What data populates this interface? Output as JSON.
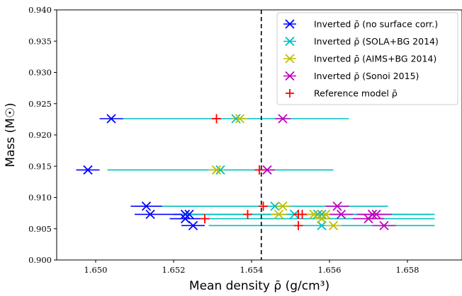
{
  "chart_data": {
    "type": "scatter",
    "xlabel": "Mean density ρ̄ (g/cm³)",
    "ylabel": "Mass (M☉)",
    "xlim": [
      1.649,
      1.6594
    ],
    "ylim": [
      0.9,
      0.94
    ],
    "x_ticks": [
      1.65,
      1.652,
      1.654,
      1.656,
      1.658
    ],
    "x_tick_labels": [
      "1.650",
      "1.652",
      "1.654",
      "1.656",
      "1.658"
    ],
    "y_ticks": [
      0.9,
      0.905,
      0.91,
      0.915,
      0.92,
      0.925,
      0.93,
      0.935,
      0.94
    ],
    "y_tick_labels": [
      "0.900",
      "0.905",
      "0.910",
      "0.915",
      "0.920",
      "0.925",
      "0.930",
      "0.935",
      "0.940"
    ],
    "vline": {
      "x": 1.65425,
      "style": "dashed",
      "color": "#000000"
    },
    "legend_position": "top-right",
    "grid": false,
    "series": [
      {
        "name": "Inverted ρ̄ (no surface corr.)",
        "marker": "x",
        "color": "#0000ff",
        "errbar_color": "#0000ff",
        "points": [
          {
            "x": 1.6504,
            "y": 0.9226,
            "xerr": 0.0003
          },
          {
            "x": 1.6498,
            "y": 0.9144,
            "xerr": 0.0003
          },
          {
            "x": 1.6513,
            "y": 0.9086,
            "xerr": 0.0004
          },
          {
            "x": 1.6514,
            "y": 0.9073,
            "xerr": 0.0004
          },
          {
            "x": 1.6523,
            "y": 0.9073,
            "xerr": 0.0005
          },
          {
            "x": 1.6524,
            "y": 0.9073,
            "xerr": 0.0004
          },
          {
            "x": 1.6523,
            "y": 0.9066,
            "xerr": 0.0004
          },
          {
            "x": 1.6525,
            "y": 0.9055,
            "xerr": 0.0003
          }
        ]
      },
      {
        "name": "Inverted ρ̄ (SOLA+BG 2014)",
        "marker": "x",
        "color": "#00bfbf",
        "errbar_color": "#00bfbf",
        "points": [
          {
            "x": 1.6536,
            "y": 0.9226,
            "xerr": 0.0029
          },
          {
            "x": 1.6532,
            "y": 0.9144,
            "xerr": 0.0029
          },
          {
            "x": 1.6546,
            "y": 0.9086,
            "xerr": 0.0029
          },
          {
            "x": 1.6551,
            "y": 0.9073,
            "xerr": 0.0029
          },
          {
            "x": 1.6557,
            "y": 0.9073,
            "xerr": 0.0029
          },
          {
            "x": 1.6558,
            "y": 0.9073,
            "xerr": 0.0029
          },
          {
            "x": 1.6558,
            "y": 0.9066,
            "xerr": 0.0029
          },
          {
            "x": 1.6558,
            "y": 0.9055,
            "xerr": 0.0029
          }
        ]
      },
      {
        "name": "Inverted ρ̄ (AIMS+BG 2014)",
        "marker": "x",
        "color": "#bfbf00",
        "errbar_color": "#bfbf00",
        "points": [
          {
            "x": 1.6537,
            "y": 0.9226,
            "xerr": 0.0002
          },
          {
            "x": 1.6531,
            "y": 0.9144,
            "xerr": 0.0002
          },
          {
            "x": 1.6548,
            "y": 0.9086,
            "xerr": 0.0002
          },
          {
            "x": 1.6547,
            "y": 0.9073,
            "xerr": 0.0002
          },
          {
            "x": 1.6556,
            "y": 0.9073,
            "xerr": 0.0002
          },
          {
            "x": 1.6559,
            "y": 0.9073,
            "xerr": 0.0002
          },
          {
            "x": 1.6558,
            "y": 0.9066,
            "xerr": 0.0002
          },
          {
            "x": 1.6561,
            "y": 0.9055,
            "xerr": 0.0002
          }
        ]
      },
      {
        "name": "Inverted ρ̄ (Sonoi 2015)",
        "marker": "x",
        "color": "#bf00bf",
        "errbar_color": "#bf00bf",
        "points": [
          {
            "x": 1.6548,
            "y": 0.9226,
            "xerr": 0.0002
          },
          {
            "x": 1.6544,
            "y": 0.9144,
            "xerr": 0.0002
          },
          {
            "x": 1.6562,
            "y": 0.9086,
            "xerr": 0.0003
          },
          {
            "x": 1.6563,
            "y": 0.9073,
            "xerr": 0.0003
          },
          {
            "x": 1.6571,
            "y": 0.9073,
            "xerr": 0.0004
          },
          {
            "x": 1.6572,
            "y": 0.9073,
            "xerr": 0.0004
          },
          {
            "x": 1.657,
            "y": 0.9066,
            "xerr": 0.0004
          },
          {
            "x": 1.6574,
            "y": 0.9055,
            "xerr": 0.0003
          }
        ]
      },
      {
        "name": "Reference model ρ̄",
        "marker": "+",
        "color": "#ff0000",
        "points": [
          {
            "x": 1.6531,
            "y": 0.9226
          },
          {
            "x": 1.6542,
            "y": 0.9144
          },
          {
            "x": 1.6543,
            "y": 0.9086
          },
          {
            "x": 1.6539,
            "y": 0.9073
          },
          {
            "x": 1.6552,
            "y": 0.9073
          },
          {
            "x": 1.6553,
            "y": 0.9073
          },
          {
            "x": 1.6528,
            "y": 0.9066
          },
          {
            "x": 1.6552,
            "y": 0.9055
          }
        ]
      }
    ]
  }
}
